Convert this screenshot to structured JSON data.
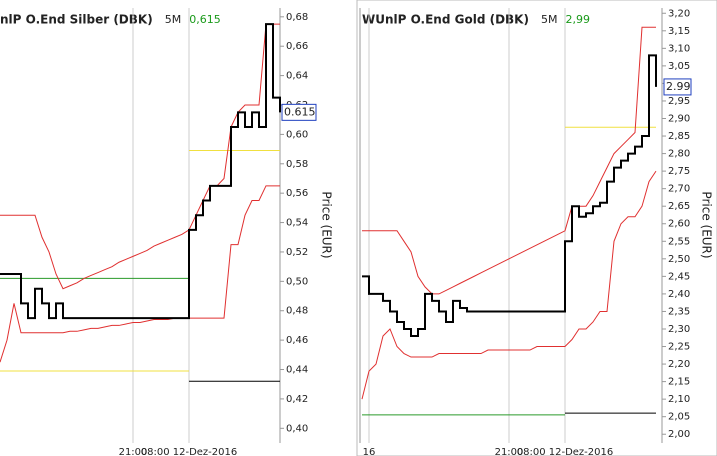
{
  "chart_data": [
    {
      "type": "line",
      "title": "nlP O.End Silber (DBK)",
      "period": "5M",
      "last_label": "0,615",
      "last_value": 0.615,
      "ylabel": "Price (EUR)",
      "grid": true,
      "categories": [
        null,
        null,
        null,
        null,
        null,
        null,
        null,
        null,
        null,
        null,
        null,
        null,
        null,
        null,
        null,
        null,
        null,
        null,
        null,
        "21:00",
        null,
        null,
        null,
        null,
        null,
        null,
        null,
        "08:00 12-Dez-2016",
        null,
        null,
        null,
        null,
        null,
        null,
        null,
        null,
        null,
        null,
        null,
        null,
        null
      ],
      "ylim": [
        0.39,
        0.686
      ],
      "yticks": [
        {
          "value": 0.4,
          "label": "0,40"
        },
        {
          "value": 0.42,
          "label": "0,42"
        },
        {
          "value": 0.44,
          "label": "0,44"
        },
        {
          "value": 0.46,
          "label": "0,46"
        },
        {
          "value": 0.48,
          "label": "0,48"
        },
        {
          "value": 0.5,
          "label": "0,50"
        },
        {
          "value": 0.52,
          "label": "0,52"
        },
        {
          "value": 0.54,
          "label": "0,54"
        },
        {
          "value": 0.56,
          "label": "0,56"
        },
        {
          "value": 0.58,
          "label": "0,58"
        },
        {
          "value": 0.6,
          "label": "0,60"
        },
        {
          "value": 0.62,
          "label": "0,62"
        },
        {
          "value": 0.64,
          "label": "0,64"
        },
        {
          "value": 0.66,
          "label": "0,66"
        },
        {
          "value": 0.68,
          "label": "0,68"
        }
      ],
      "series": [
        {
          "color": "#2a9a2a",
          "values": [
            0.502,
            0.502,
            0.502,
            0.502,
            0.502,
            0.502,
            0.502,
            0.502,
            0.502,
            0.502,
            0.502,
            0.502,
            0.502,
            0.502,
            0.502,
            0.502,
            0.502,
            0.502,
            0.502,
            0.502,
            0.502,
            0.502,
            0.502,
            0.502,
            0.502,
            0.502,
            0.502,
            0.502,
            null,
            null,
            null,
            null,
            null,
            null,
            null,
            null,
            null,
            null,
            null,
            null,
            null
          ]
        },
        {
          "color": "#f0e040",
          "values": [
            0.439,
            0.439,
            0.439,
            0.439,
            0.439,
            0.439,
            0.439,
            0.439,
            0.439,
            0.439,
            0.439,
            0.439,
            0.439,
            0.439,
            0.439,
            0.439,
            0.439,
            0.439,
            0.439,
            0.439,
            0.439,
            0.439,
            0.439,
            0.439,
            0.439,
            0.439,
            0.439,
            0.439,
            null,
            null,
            null,
            null,
            null,
            null,
            null,
            null,
            null,
            null,
            null,
            null,
            null
          ]
        },
        {
          "color": "#f0e040",
          "values": [
            null,
            null,
            null,
            null,
            null,
            null,
            null,
            null,
            null,
            null,
            null,
            null,
            null,
            null,
            null,
            null,
            null,
            null,
            null,
            null,
            null,
            null,
            null,
            null,
            null,
            null,
            null,
            0.589,
            0.589,
            0.589,
            0.589,
            0.589,
            0.589,
            0.589,
            0.589,
            0.589,
            0.589,
            0.589,
            0.589,
            0.589,
            0.589
          ]
        },
        {
          "color": "#000000",
          "values": [
            null,
            null,
            null,
            null,
            null,
            null,
            null,
            null,
            null,
            null,
            null,
            null,
            null,
            null,
            null,
            null,
            null,
            null,
            null,
            null,
            null,
            null,
            null,
            null,
            null,
            null,
            null,
            0.432,
            0.432,
            0.432,
            0.432,
            0.432,
            0.432,
            0.432,
            0.432,
            0.432,
            0.432,
            0.432,
            0.432,
            0.432,
            0.432
          ]
        },
        {
          "color": "#e03030",
          "values": [
            0.545,
            0.545,
            0.545,
            0.545,
            0.545,
            0.545,
            0.53,
            0.52,
            0.505,
            0.495,
            0.497,
            0.499,
            0.502,
            0.504,
            0.506,
            0.508,
            0.51,
            0.513,
            0.515,
            0.517,
            0.519,
            0.521,
            0.524,
            0.526,
            0.528,
            0.53,
            0.532,
            0.535,
            0.545,
            0.555,
            0.565,
            0.565,
            0.57,
            0.605,
            0.615,
            0.62,
            0.62,
            0.62,
            0.675,
            0.675,
            0.675
          ]
        },
        {
          "color": "#e03030",
          "values": [
            0.445,
            0.46,
            0.485,
            0.465,
            0.465,
            0.465,
            0.465,
            0.465,
            0.465,
            0.465,
            0.466,
            0.466,
            0.467,
            0.468,
            0.468,
            0.469,
            0.47,
            0.47,
            0.471,
            0.472,
            0.472,
            0.473,
            0.474,
            0.474,
            0.474,
            0.475,
            0.475,
            0.475,
            0.475,
            0.475,
            0.475,
            0.475,
            0.475,
            0.525,
            0.525,
            0.545,
            0.555,
            0.555,
            0.565,
            0.565,
            0.565
          ]
        },
        {
          "color": "#000000",
          "drawstyle": "steps",
          "values": [
            0.505,
            0.505,
            0.505,
            0.485,
            0.475,
            0.495,
            0.485,
            0.475,
            0.485,
            0.475,
            0.475,
            0.475,
            0.475,
            0.475,
            0.475,
            0.475,
            0.475,
            0.475,
            0.475,
            0.475,
            0.475,
            0.475,
            0.475,
            0.475,
            0.475,
            0.475,
            0.475,
            0.535,
            0.545,
            0.555,
            0.565,
            0.565,
            0.565,
            0.605,
            0.615,
            0.605,
            0.615,
            0.605,
            0.675,
            0.625,
            0.615
          ]
        }
      ]
    },
    {
      "type": "line",
      "title": "WUnlP O.End Gold (DBK)",
      "period": "5M",
      "last_label": "2,99",
      "last_value": 2.99,
      "ylabel": "Price (EUR)",
      "grid": true,
      "categories": [
        null,
        "16",
        null,
        null,
        null,
        null,
        null,
        null,
        null,
        null,
        null,
        null,
        null,
        null,
        null,
        null,
        null,
        null,
        null,
        null,
        null,
        "21:00",
        null,
        null,
        null,
        null,
        null,
        null,
        null,
        "08:00 12-Dez-2016",
        null,
        null,
        null,
        null,
        null,
        null,
        null,
        null,
        null,
        null,
        null,
        null,
        null
      ],
      "ylim": [
        1.975,
        3.215
      ],
      "yticks": [
        {
          "value": 2.0,
          "label": "2,00"
        },
        {
          "value": 2.05,
          "label": "2,05"
        },
        {
          "value": 2.1,
          "label": "2,10"
        },
        {
          "value": 2.15,
          "label": "2,15"
        },
        {
          "value": 2.2,
          "label": "2,20"
        },
        {
          "value": 2.25,
          "label": "2,25"
        },
        {
          "value": 2.3,
          "label": "2,30"
        },
        {
          "value": 2.35,
          "label": "2,35"
        },
        {
          "value": 2.4,
          "label": "2,40"
        },
        {
          "value": 2.45,
          "label": "2,45"
        },
        {
          "value": 2.5,
          "label": "2,50"
        },
        {
          "value": 2.55,
          "label": "2,55"
        },
        {
          "value": 2.6,
          "label": "2,60"
        },
        {
          "value": 2.65,
          "label": "2,65"
        },
        {
          "value": 2.7,
          "label": "2,70"
        },
        {
          "value": 2.75,
          "label": "2,75"
        },
        {
          "value": 2.8,
          "label": "2,80"
        },
        {
          "value": 2.85,
          "label": "2,85"
        },
        {
          "value": 2.9,
          "label": "2,90"
        },
        {
          "value": 2.95,
          "label": "2,95"
        },
        {
          "value": 3.0,
          "label": "3,00"
        },
        {
          "value": 3.05,
          "label": "3,05"
        },
        {
          "value": 3.1,
          "label": "3,10"
        },
        {
          "value": 3.15,
          "label": "3,15"
        },
        {
          "value": 3.2,
          "label": "3,20"
        }
      ],
      "series": [
        {
          "color": "#2a9a2a",
          "values": [
            2.055,
            2.055,
            2.055,
            2.055,
            2.055,
            2.055,
            2.055,
            2.055,
            2.055,
            2.055,
            2.055,
            2.055,
            2.055,
            2.055,
            2.055,
            2.055,
            2.055,
            2.055,
            2.055,
            2.055,
            2.055,
            2.055,
            2.055,
            2.055,
            2.055,
            2.055,
            2.055,
            2.055,
            2.055,
            2.055,
            null,
            null,
            null,
            null,
            null,
            null,
            null,
            null,
            null,
            null,
            null,
            null,
            null
          ]
        },
        {
          "color": "#000000",
          "values": [
            null,
            null,
            null,
            null,
            null,
            null,
            null,
            null,
            null,
            null,
            null,
            null,
            null,
            null,
            null,
            null,
            null,
            null,
            null,
            null,
            null,
            null,
            null,
            null,
            null,
            null,
            null,
            null,
            null,
            2.06,
            2.06,
            2.06,
            2.06,
            2.06,
            2.06,
            2.06,
            2.06,
            2.06,
            2.06,
            2.06,
            2.06,
            2.06,
            2.06
          ]
        },
        {
          "color": "#f0e040",
          "values": [
            null,
            null,
            null,
            null,
            null,
            null,
            null,
            null,
            null,
            null,
            null,
            null,
            null,
            null,
            null,
            null,
            null,
            null,
            null,
            null,
            null,
            null,
            null,
            null,
            null,
            null,
            null,
            null,
            null,
            2.875,
            2.875,
            2.875,
            2.875,
            2.875,
            2.875,
            2.875,
            2.875,
            2.875,
            2.875,
            2.875,
            2.875,
            2.875,
            2.875
          ]
        },
        {
          "color": "#e03030",
          "values": [
            2.58,
            2.58,
            2.58,
            2.58,
            2.58,
            2.58,
            2.55,
            2.52,
            2.45,
            2.42,
            2.4,
            2.4,
            2.41,
            2.42,
            2.43,
            2.44,
            2.45,
            2.46,
            2.47,
            2.48,
            2.49,
            2.5,
            2.51,
            2.52,
            2.53,
            2.54,
            2.55,
            2.56,
            2.57,
            2.58,
            2.65,
            2.65,
            2.65,
            2.68,
            2.72,
            2.76,
            2.8,
            2.82,
            2.84,
            2.86,
            3.16,
            3.16,
            3.16
          ]
        },
        {
          "color": "#e03030",
          "values": [
            2.1,
            2.18,
            2.2,
            2.28,
            2.3,
            2.25,
            2.23,
            2.22,
            2.22,
            2.22,
            2.22,
            2.23,
            2.23,
            2.23,
            2.23,
            2.23,
            2.23,
            2.23,
            2.24,
            2.24,
            2.24,
            2.24,
            2.24,
            2.24,
            2.24,
            2.25,
            2.25,
            2.25,
            2.25,
            2.25,
            2.27,
            2.3,
            2.3,
            2.32,
            2.35,
            2.35,
            2.55,
            2.6,
            2.62,
            2.62,
            2.65,
            2.72,
            2.75
          ]
        },
        {
          "color": "#000000",
          "drawstyle": "steps",
          "values": [
            2.45,
            2.4,
            2.4,
            2.38,
            2.35,
            2.32,
            2.3,
            2.28,
            2.3,
            2.4,
            2.38,
            2.35,
            2.32,
            2.38,
            2.36,
            2.35,
            2.35,
            2.35,
            2.35,
            2.35,
            2.35,
            2.35,
            2.35,
            2.35,
            2.35,
            2.35,
            2.35,
            2.35,
            2.35,
            2.55,
            2.65,
            2.62,
            2.63,
            2.65,
            2.66,
            2.72,
            2.76,
            2.78,
            2.8,
            2.82,
            2.85,
            3.08,
            2.99
          ]
        }
      ]
    }
  ]
}
